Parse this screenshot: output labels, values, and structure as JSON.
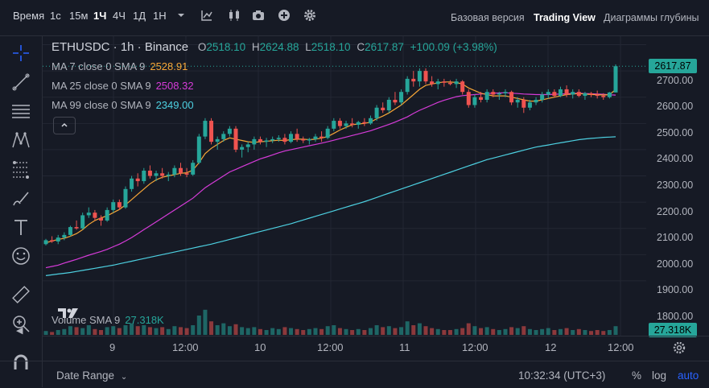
{
  "toolbar": {
    "time_label": "Время",
    "intervals": [
      "1с",
      "15м",
      "1Ч",
      "4Ч",
      "1Д",
      "1Н"
    ],
    "active_interval": "1Ч",
    "views": [
      "Базовая версия",
      "Trading View",
      "Диаграммы глубины"
    ],
    "active_view": "Trading View"
  },
  "legend": {
    "symbol": "ETHUSDC · 1h · Binance",
    "o_label": "O",
    "o": "2518.10",
    "h_label": "H",
    "h": "2624.88",
    "l_label": "L",
    "l": "2518.10",
    "c_label": "C",
    "c": "2617.87",
    "change": "+100.09 (+3.98%)"
  },
  "ma": [
    {
      "label": "MA 7 close 0 SMA 9",
      "value": "2528.91",
      "color": "#F7A637"
    },
    {
      "label": "MA 25 close 0 SMA 9",
      "value": "2508.32",
      "color": "#D63BD9"
    },
    {
      "label": "MA 99 close 0 SMA 9",
      "value": "2349.00",
      "color": "#4DD0E1"
    }
  ],
  "volume": {
    "label": "Volume SMA 9",
    "value": "27.318K"
  },
  "price_axis": {
    "ticks": [
      "2700.00",
      "2600.00",
      "2500.00",
      "2400.00",
      "2300.00",
      "2200.00",
      "2100.00",
      "2000.00",
      "1900.00",
      "1800.00"
    ],
    "last_price": "2617.87",
    "volume_badge": "27.318K"
  },
  "time_axis": {
    "ticks": [
      "9",
      "12:00",
      "10",
      "12:00",
      "11",
      "12:00",
      "12",
      "12:00"
    ]
  },
  "footer": {
    "date_range": "Date Range",
    "clock": "10:32:34 (UTC+3)",
    "percent": "%",
    "log": "log",
    "auto": "auto"
  },
  "colors": {
    "up": "#26A69A",
    "down": "#EF5350",
    "bg": "#161A25",
    "grid": "#232733",
    "accent": "#2962FF"
  },
  "chart_data": {
    "type": "candlestick",
    "ylim": [
      1720,
      2720
    ],
    "candles": [
      [
        1940,
        1960,
        1935,
        1955
      ],
      [
        1955,
        1970,
        1945,
        1950
      ],
      [
        1950,
        1975,
        1940,
        1965
      ],
      [
        1965,
        1985,
        1955,
        1975
      ],
      [
        1975,
        2010,
        1970,
        2005
      ],
      [
        2005,
        2030,
        1995,
        2000
      ],
      [
        2000,
        2060,
        1995,
        2050
      ],
      [
        2050,
        2080,
        2040,
        2060
      ],
      [
        2060,
        2070,
        2030,
        2040
      ],
      [
        2040,
        2050,
        2010,
        2030
      ],
      [
        2030,
        2080,
        2025,
        2070
      ],
      [
        2070,
        2110,
        2060,
        2100
      ],
      [
        2100,
        2110,
        2070,
        2080
      ],
      [
        2080,
        2160,
        2075,
        2150
      ],
      [
        2150,
        2200,
        2140,
        2190
      ],
      [
        2190,
        2210,
        2160,
        2180
      ],
      [
        2180,
        2230,
        2170,
        2220
      ],
      [
        2220,
        2240,
        2190,
        2200
      ],
      [
        2200,
        2220,
        2180,
        2210
      ],
      [
        2210,
        2230,
        2190,
        2200
      ],
      [
        2200,
        2215,
        2180,
        2205
      ],
      [
        2205,
        2240,
        2195,
        2230
      ],
      [
        2230,
        2250,
        2200,
        2210
      ],
      [
        2210,
        2230,
        2195,
        2205
      ],
      [
        2205,
        2260,
        2200,
        2250
      ],
      [
        2250,
        2360,
        2245,
        2350
      ],
      [
        2350,
        2420,
        2340,
        2410
      ],
      [
        2410,
        2420,
        2320,
        2330
      ],
      [
        2330,
        2350,
        2300,
        2340
      ],
      [
        2340,
        2370,
        2330,
        2360
      ],
      [
        2360,
        2390,
        2350,
        2380
      ],
      [
        2380,
        2390,
        2290,
        2300
      ],
      [
        2300,
        2320,
        2270,
        2310
      ],
      [
        2310,
        2330,
        2290,
        2320
      ],
      [
        2320,
        2350,
        2300,
        2340
      ],
      [
        2340,
        2350,
        2320,
        2330
      ],
      [
        2330,
        2345,
        2310,
        2335
      ],
      [
        2335,
        2350,
        2325,
        2340
      ],
      [
        2340,
        2355,
        2330,
        2345
      ],
      [
        2345,
        2360,
        2320,
        2330
      ],
      [
        2330,
        2370,
        2325,
        2360
      ],
      [
        2360,
        2380,
        2330,
        2340
      ],
      [
        2340,
        2350,
        2325,
        2335
      ],
      [
        2335,
        2345,
        2320,
        2340
      ],
      [
        2340,
        2360,
        2330,
        2350
      ],
      [
        2350,
        2370,
        2330,
        2345
      ],
      [
        2345,
        2390,
        2340,
        2380
      ],
      [
        2380,
        2420,
        2370,
        2410
      ],
      [
        2410,
        2420,
        2380,
        2390
      ],
      [
        2390,
        2410,
        2380,
        2400
      ],
      [
        2400,
        2420,
        2385,
        2395
      ],
      [
        2395,
        2410,
        2380,
        2405
      ],
      [
        2405,
        2420,
        2390,
        2400
      ],
      [
        2400,
        2430,
        2395,
        2420
      ],
      [
        2420,
        2470,
        2410,
        2460
      ],
      [
        2460,
        2480,
        2440,
        2450
      ],
      [
        2450,
        2500,
        2440,
        2490
      ],
      [
        2490,
        2520,
        2470,
        2480
      ],
      [
        2480,
        2530,
        2470,
        2520
      ],
      [
        2520,
        2580,
        2510,
        2570
      ],
      [
        2570,
        2600,
        2540,
        2560
      ],
      [
        2560,
        2610,
        2540,
        2600
      ],
      [
        2600,
        2610,
        2550,
        2560
      ],
      [
        2560,
        2580,
        2540,
        2550
      ],
      [
        2550,
        2570,
        2530,
        2560
      ],
      [
        2560,
        2570,
        2540,
        2555
      ],
      [
        2555,
        2565,
        2545,
        2550
      ],
      [
        2550,
        2570,
        2535,
        2560
      ],
      [
        2560,
        2565,
        2510,
        2520
      ],
      [
        2520,
        2530,
        2460,
        2470
      ],
      [
        2470,
        2510,
        2460,
        2500
      ],
      [
        2500,
        2520,
        2480,
        2490
      ],
      [
        2490,
        2530,
        2480,
        2520
      ],
      [
        2520,
        2530,
        2500,
        2510
      ],
      [
        2510,
        2520,
        2490,
        2515
      ],
      [
        2515,
        2530,
        2500,
        2520
      ],
      [
        2520,
        2525,
        2470,
        2480
      ],
      [
        2480,
        2500,
        2460,
        2490
      ],
      [
        2490,
        2500,
        2440,
        2460
      ],
      [
        2460,
        2490,
        2450,
        2480
      ],
      [
        2480,
        2500,
        2470,
        2490
      ],
      [
        2490,
        2520,
        2480,
        2510
      ],
      [
        2510,
        2530,
        2495,
        2520
      ],
      [
        2520,
        2530,
        2500,
        2505
      ],
      [
        2505,
        2540,
        2500,
        2530
      ],
      [
        2530,
        2545,
        2500,
        2510
      ],
      [
        2510,
        2530,
        2495,
        2520
      ],
      [
        2520,
        2530,
        2500,
        2505
      ],
      [
        2505,
        2520,
        2490,
        2515
      ],
      [
        2515,
        2520,
        2500,
        2510
      ],
      [
        2510,
        2525,
        2495,
        2505
      ],
      [
        2505,
        2515,
        2490,
        2500
      ],
      [
        2500,
        2520,
        2495,
        2518
      ],
      [
        2518,
        2625,
        2518,
        2618
      ]
    ],
    "ma7": [
      1945,
      1952,
      1958,
      1962,
      1970,
      1980,
      1995,
      2015,
      2030,
      2040,
      2048,
      2060,
      2072,
      2090,
      2110,
      2130,
      2150,
      2170,
      2185,
      2195,
      2200,
      2205,
      2210,
      2212,
      2222,
      2250,
      2285,
      2305,
      2320,
      2335,
      2345,
      2340,
      2335,
      2330,
      2328,
      2330,
      2332,
      2334,
      2336,
      2335,
      2338,
      2340,
      2340,
      2338,
      2340,
      2344,
      2350,
      2362,
      2375,
      2385,
      2395,
      2398,
      2400,
      2405,
      2418,
      2428,
      2440,
      2455,
      2470,
      2490,
      2510,
      2530,
      2545,
      2550,
      2555,
      2558,
      2558,
      2556,
      2550,
      2535,
      2525,
      2515,
      2510,
      2505,
      2505,
      2505,
      2500,
      2495,
      2490,
      2485,
      2485,
      2490,
      2495,
      2500,
      2505,
      2510,
      2512,
      2514,
      2512,
      2510,
      2510,
      2508,
      2510,
      2529
    ],
    "ma25": [
      1850,
      1855,
      1860,
      1868,
      1875,
      1882,
      1890,
      1898,
      1905,
      1912,
      1920,
      1930,
      1940,
      1952,
      1965,
      1980,
      1995,
      2010,
      2025,
      2040,
      2055,
      2070,
      2085,
      2100,
      2115,
      2135,
      2155,
      2170,
      2185,
      2200,
      2215,
      2225,
      2235,
      2245,
      2255,
      2265,
      2272,
      2280,
      2288,
      2295,
      2300,
      2305,
      2310,
      2315,
      2320,
      2325,
      2330,
      2336,
      2342,
      2348,
      2354,
      2360,
      2366,
      2372,
      2380,
      2388,
      2396,
      2405,
      2415,
      2425,
      2438,
      2450,
      2460,
      2470,
      2480,
      2488,
      2495,
      2502,
      2506,
      2508,
      2510,
      2512,
      2514,
      2515,
      2516,
      2517,
      2515,
      2514,
      2512,
      2511,
      2510,
      2510,
      2510,
      2511,
      2512,
      2513,
      2514,
      2515,
      2514,
      2513,
      2512,
      2511,
      2509,
      2508
    ],
    "ma99": [
      1820,
      1823,
      1826,
      1829,
      1832,
      1836,
      1840,
      1844,
      1848,
      1852,
      1856,
      1860,
      1865,
      1870,
      1875,
      1880,
      1885,
      1890,
      1895,
      1900,
      1905,
      1910,
      1915,
      1920,
      1925,
      1930,
      1935,
      1940,
      1946,
      1952,
      1958,
      1964,
      1970,
      1976,
      1982,
      1988,
      1994,
      2000,
      2006,
      2012,
      2018,
      2025,
      2032,
      2039,
      2046,
      2053,
      2060,
      2067,
      2074,
      2081,
      2088,
      2095,
      2102,
      2110,
      2118,
      2126,
      2134,
      2142,
      2150,
      2158,
      2166,
      2174,
      2182,
      2190,
      2198,
      2206,
      2214,
      2222,
      2230,
      2238,
      2246,
      2254,
      2262,
      2268,
      2274,
      2280,
      2286,
      2292,
      2298,
      2304,
      2310,
      2314,
      2318,
      2322,
      2326,
      2330,
      2334,
      2338,
      2341,
      2343,
      2345,
      2347,
      2348,
      2349
    ],
    "volume": [
      4,
      3,
      5,
      6,
      9,
      8,
      7,
      10,
      6,
      5,
      8,
      9,
      7,
      10,
      12,
      9,
      10,
      8,
      7,
      8,
      6,
      9,
      8,
      7,
      10,
      20,
      26,
      14,
      10,
      12,
      9,
      11,
      8,
      7,
      8,
      6,
      5,
      7,
      6,
      8,
      7,
      6,
      5,
      6,
      7,
      6,
      9,
      10,
      7,
      6,
      5,
      6,
      5,
      7,
      10,
      8,
      9,
      7,
      8,
      14,
      10,
      12,
      9,
      7,
      6,
      5,
      5,
      6,
      7,
      12,
      9,
      7,
      8,
      6,
      5,
      6,
      8,
      7,
      9,
      6,
      5,
      6,
      7,
      5,
      6,
      7,
      5,
      6,
      5,
      4,
      5,
      4,
      5,
      9
    ],
    "volume_max": 30
  }
}
